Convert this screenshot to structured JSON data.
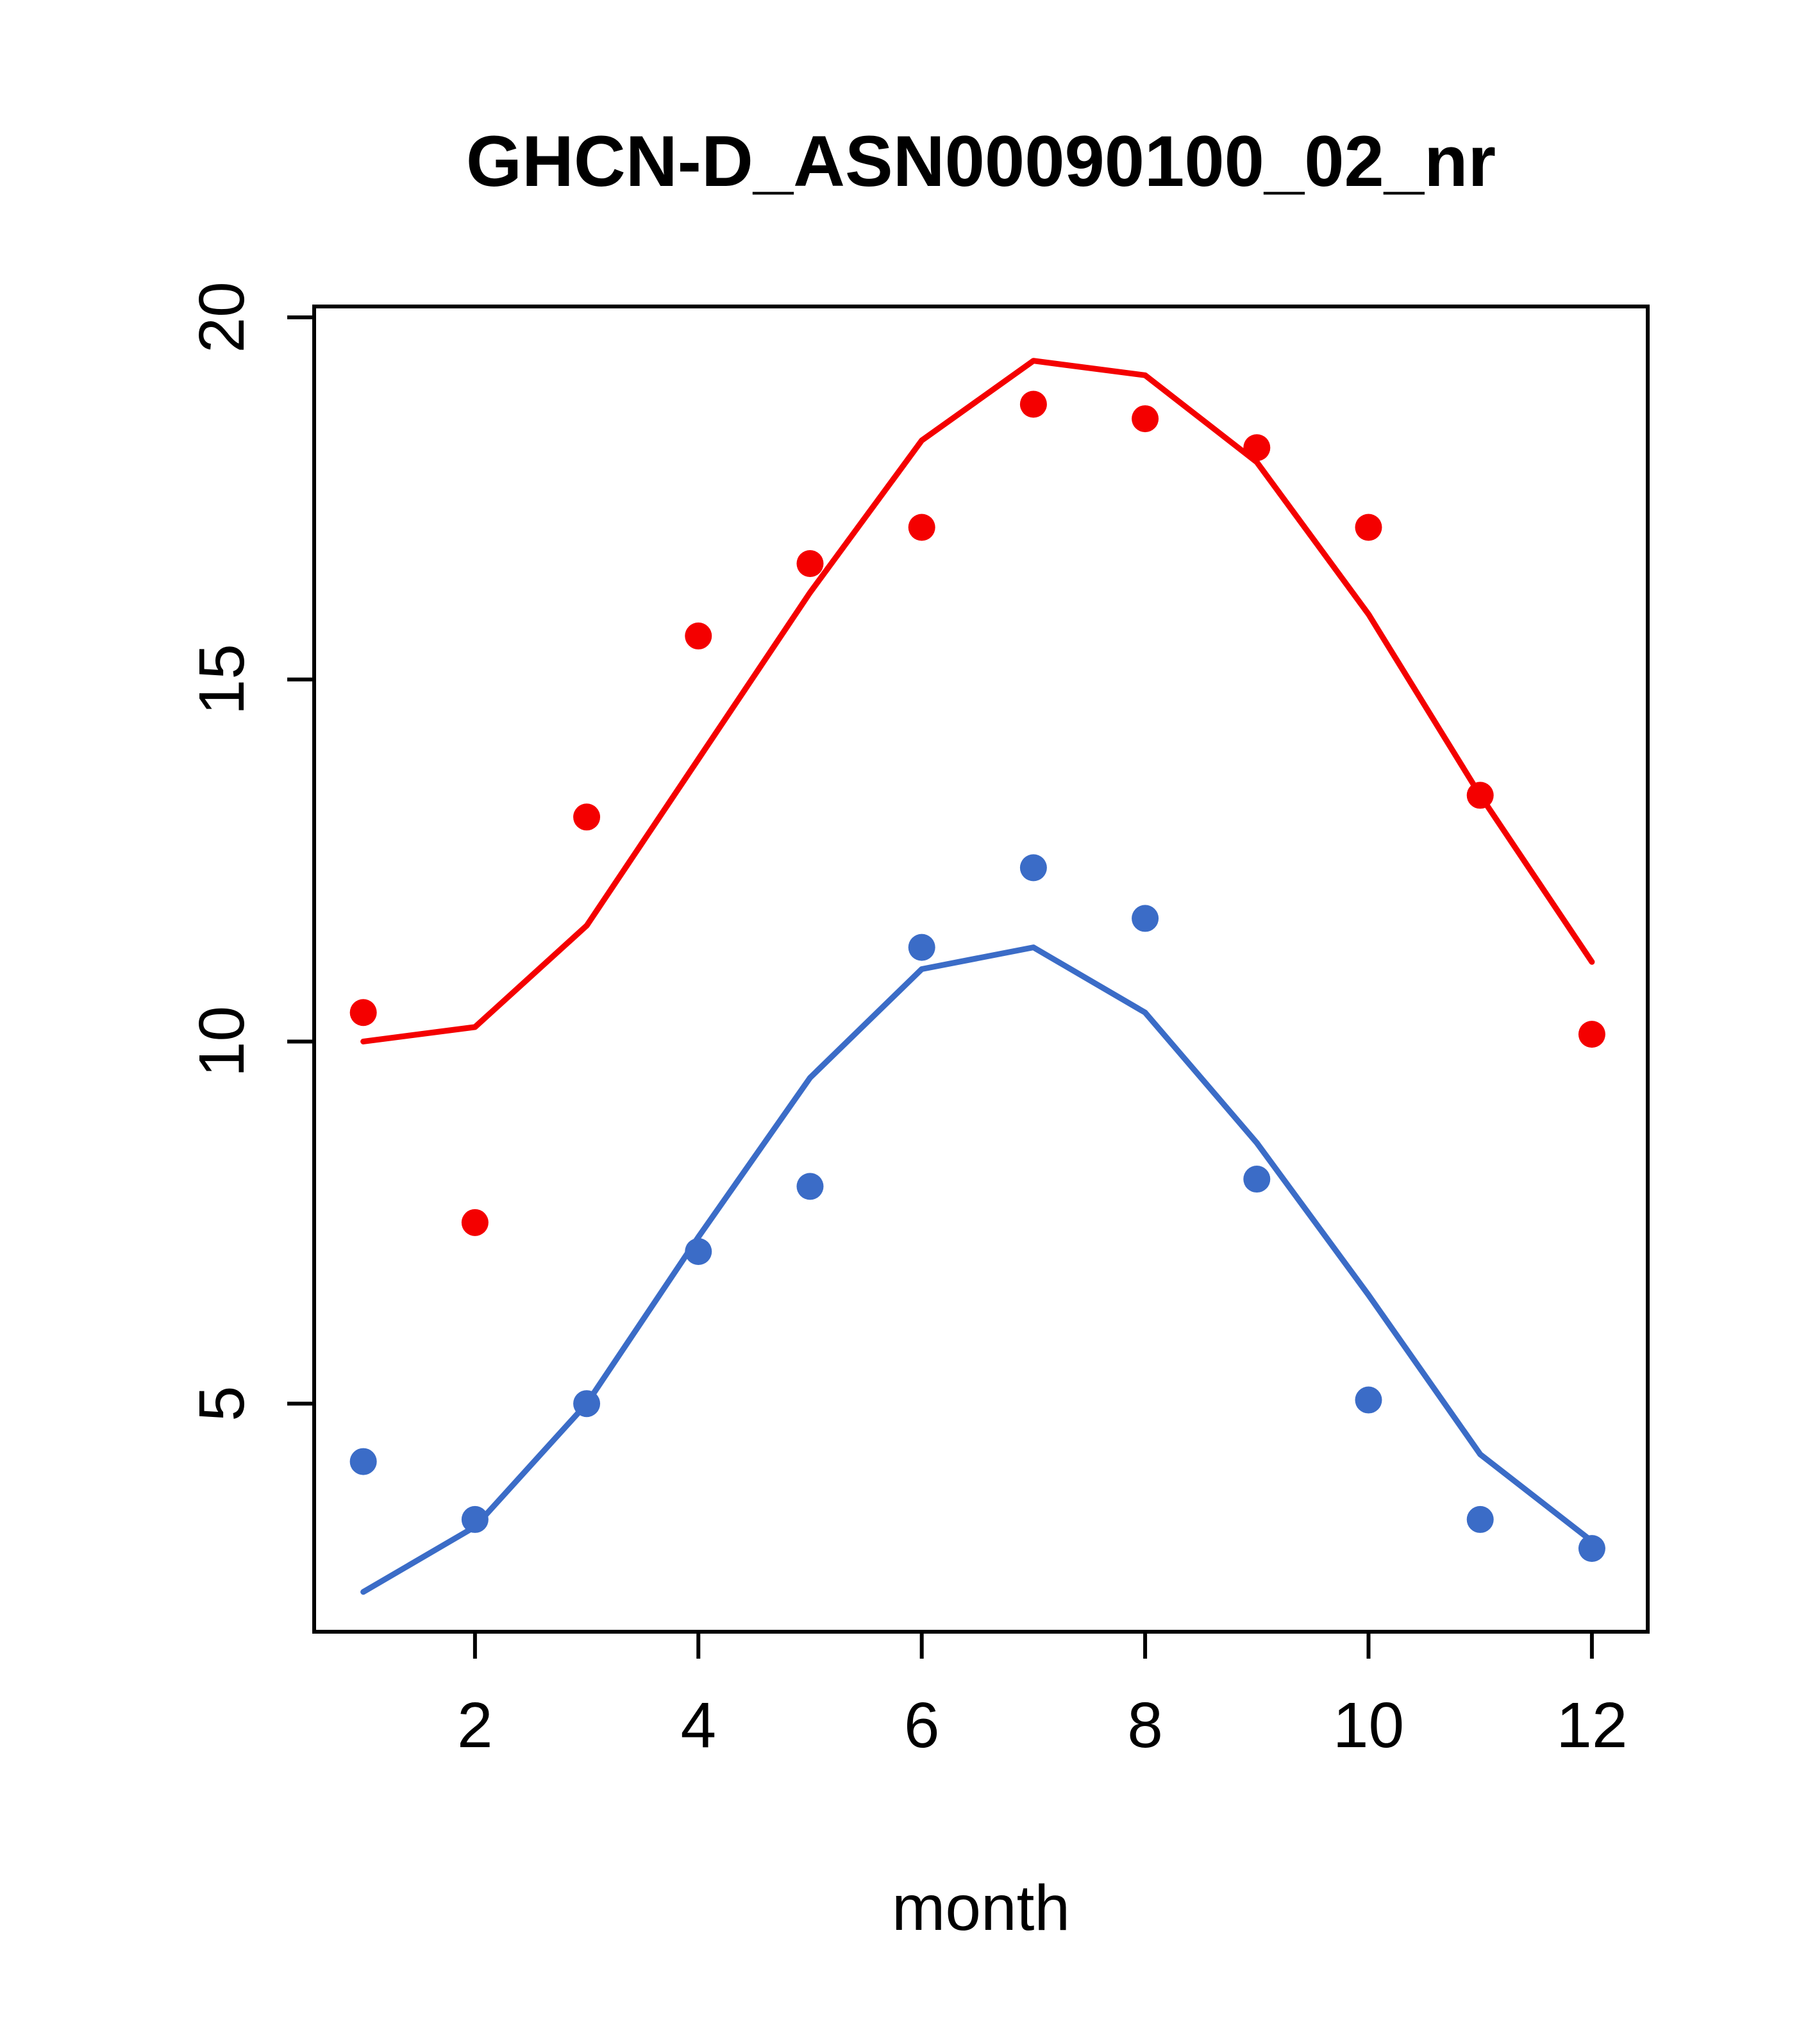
{
  "chart_data": {
    "type": "scatter",
    "title": "GHCN-D_ASN00090100_02_nr",
    "xlabel": "month",
    "ylabel": "",
    "x": [
      1,
      2,
      3,
      4,
      5,
      6,
      7,
      8,
      9,
      10,
      11,
      12
    ],
    "series": [
      {
        "name": "red-observed-points",
        "style": "points",
        "color": "#f40000",
        "values": [
          10.4,
          7.5,
          13.1,
          15.6,
          16.6,
          17.1,
          18.8,
          18.6,
          18.2,
          17.1,
          13.4,
          10.1
        ]
      },
      {
        "name": "red-fit-line",
        "style": "line",
        "color": "#f40000",
        "values": [
          10.0,
          10.2,
          11.6,
          13.9,
          16.2,
          18.3,
          19.4,
          19.2,
          18.0,
          15.9,
          13.4,
          11.1
        ]
      },
      {
        "name": "blue-observed-points",
        "style": "points",
        "color": "#3b6cc7",
        "values": [
          4.2,
          3.4,
          5.0,
          7.1,
          8.0,
          11.3,
          12.4,
          11.7,
          8.1,
          5.05,
          3.4,
          3.0
        ]
      },
      {
        "name": "blue-fit-line",
        "style": "line",
        "color": "#3b6cc7",
        "values": [
          2.4,
          3.3,
          5.0,
          7.3,
          9.5,
          11.0,
          11.3,
          10.4,
          8.6,
          6.5,
          4.3,
          3.1
        ]
      }
    ],
    "xticks": [
      2,
      4,
      6,
      8,
      10,
      12
    ],
    "yticks": [
      5,
      10,
      15,
      20
    ],
    "xlim": [
      0.56,
      12.5
    ],
    "ylim": [
      1.85,
      20.15
    ],
    "grid": false,
    "legend": "none",
    "axis_color": "#000000",
    "text_color": "#000000"
  }
}
